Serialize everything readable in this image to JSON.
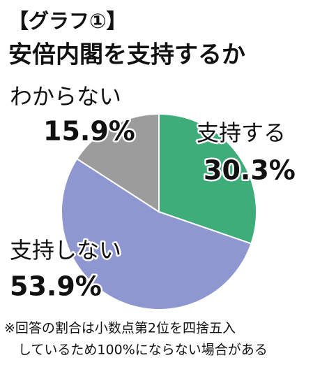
{
  "chart_data": {
    "type": "pie",
    "title": "【グラフ①】",
    "subtitle": "安倍内閣を支持するか",
    "categories": [
      "支持する",
      "支持しない",
      "わからない"
    ],
    "values": [
      30.3,
      53.9,
      15.9
    ],
    "value_labels": [
      "30.3%",
      "53.9%",
      "15.9%"
    ],
    "colors": [
      "#3fad7a",
      "#8e97d0",
      "#9c9c9c"
    ],
    "note": [
      "※回答の割合は小数点第2位を四捨五入",
      "しているため100%にならない場合がある"
    ]
  }
}
